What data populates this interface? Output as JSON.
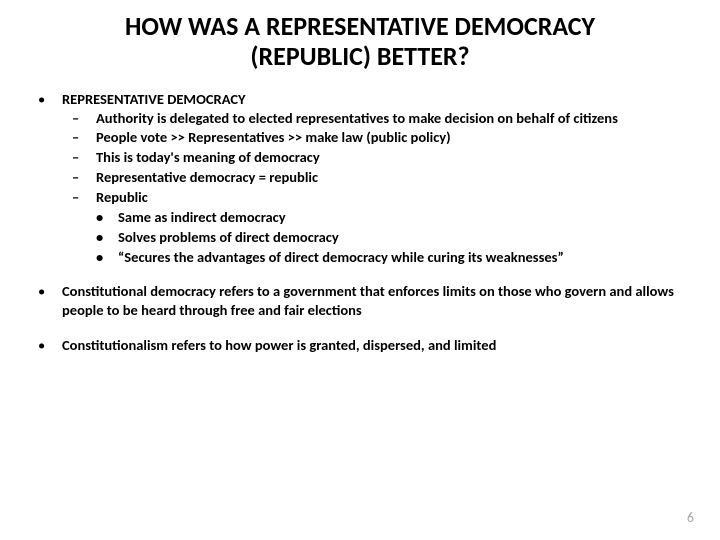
{
  "title_line1": "HOW WAS A REPRESENTATIVE DEMOCRACY",
  "title_line2": "(REPUBLIC) BETTER?",
  "bullets": {
    "b1": {
      "head": "REPRESENTATIVE DEMOCRACY",
      "sub": [
        "Authority is delegated to elected representatives to make decision on behalf of citizens",
        "People vote >> Representatives >> make law (public policy)",
        "This is today's meaning of democracy",
        "Representative democracy = republic",
        "Republic"
      ],
      "subsub": [
        "Same as indirect democracy",
        "Solves problems of direct democracy",
        "“Secures the advantages of direct democracy while curing its weaknesses”"
      ]
    },
    "b2": "Constitutional democracy refers to a government that enforces limits on those who govern and allows people to be heard through free and fair elections",
    "b3": "Constitutionalism refers to how power is granted, dispersed, and limited"
  },
  "page_number": "6",
  "markers": {
    "dot": "•",
    "dash": "–"
  },
  "colors": {
    "background": "#ffffff",
    "text": "#000000",
    "page_num": "#a6a6a6"
  }
}
